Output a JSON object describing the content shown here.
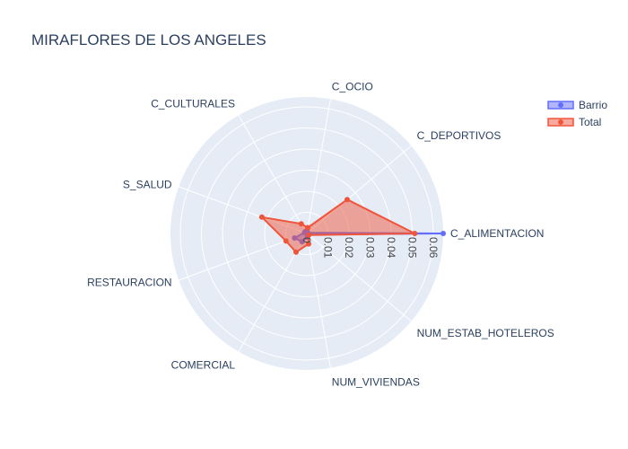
{
  "chart_data": {
    "type": "radar",
    "title": "MIRAFLORES DE LOS ANGELES",
    "categories": [
      "C_ALIMENTACION",
      "C_DEPORTIVOS",
      "C_OCIO",
      "C_CULTURALES",
      "S_SALUD",
      "RESTAURACION",
      "COMERCIAL",
      "NUM_VIVIENDAS",
      "NUM_ESTAB_HOTELEROS"
    ],
    "radial_ticks": [
      "0",
      "0.01",
      "0.02",
      "0.03",
      "0.04",
      "0.05",
      "0.06"
    ],
    "radial_range": [
      0,
      0.0647
    ],
    "series": [
      {
        "name": "Barrio",
        "color": "#636efa",
        "values": [
          0.0647,
          0.0006,
          0.001,
          0.0012,
          0.0012,
          0.0062,
          0.0045,
          0.0018,
          0.0008
        ]
      },
      {
        "name": "Total",
        "color": "#ef553b",
        "values": [
          0.0512,
          0.025,
          0.0028,
          0.0053,
          0.0227,
          0.0105,
          0.0102,
          0.005,
          0.0012
        ]
      }
    ],
    "legend_position": "top-right"
  }
}
